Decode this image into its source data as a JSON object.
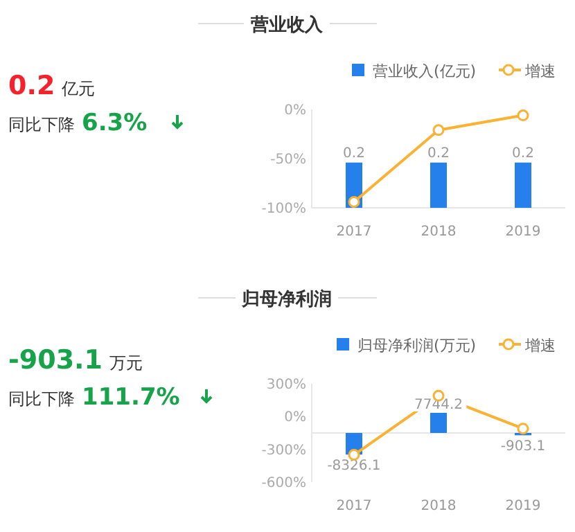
{
  "chart_data": [
    {
      "type": "other",
      "title": "营业收入",
      "annotations": [
        "0.2",
        "亿元",
        "同比下降",
        "6.3%"
      ],
      "colors": [
        "#f5222d",
        "#16a34a"
      ]
    },
    {
      "type": "bar",
      "categories": [
        "2017",
        "2018",
        "2019"
      ],
      "legend": "top right",
      "marker": "circle",
      "series": [
        {
          "name": "营业收入(亿元)",
          "color": "#2680eb",
          "axis": "y2",
          "values": [
            0.2,
            0.2,
            0.2
          ],
          "value_labels": [
            "0.2",
            "0.2",
            "0.2"
          ]
        },
        {
          "name": "增速",
          "type": "line",
          "color": "#f9b233",
          "values": [
            -94,
            -21,
            -6
          ]
        }
      ],
      "ylim": [
        -100,
        0
      ],
      "yticks": [
        {
          "value": -100,
          "label": "-100%"
        },
        {
          "value": -50,
          "label": "-50%"
        },
        {
          "value": 0,
          "label": "0%"
        }
      ]
    },
    {
      "type": "other",
      "title": "归母净利润",
      "annotations": [
        "-903.1",
        "万元",
        "同比下降",
        "111.7%"
      ],
      "colors": [
        "#16a34a",
        "#16a34a"
      ]
    },
    {
      "type": "bar",
      "categories": [
        "2017",
        "2018",
        "2019"
      ],
      "legend": "top right",
      "marker": "circle",
      "series": [
        {
          "name": "归母净利润(万元)",
          "color": "#2680eb",
          "axis": "y2",
          "values": [
            -8326.1,
            7744.2,
            -903.1
          ],
          "value_labels": [
            "-8326.1",
            "7744.2",
            "-903.1"
          ]
        },
        {
          "name": "增速",
          "type": "line",
          "color": "#f9b233",
          "values": [
            -350,
            190,
            -110
          ]
        }
      ],
      "ylim": [
        -600,
        300
      ],
      "yticks": [
        {
          "value": -600,
          "label": "-600%"
        },
        {
          "value": -300,
          "label": "-300%"
        },
        {
          "value": 0,
          "label": "0%"
        },
        {
          "value": 300,
          "label": "300%"
        }
      ]
    }
  ]
}
